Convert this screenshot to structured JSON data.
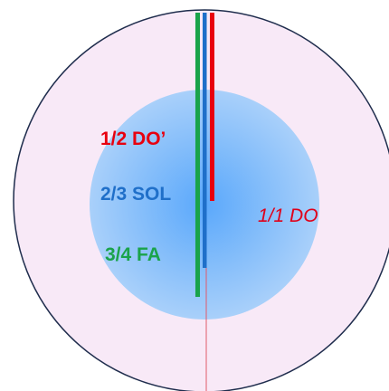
{
  "labels": {
    "octave": "1/2 DO’",
    "fifth": "2/3 SOL",
    "fourth": "3/4 FA",
    "fundamental": "1/1 DO"
  },
  "colors": {
    "octave": "#e8000f",
    "fifth": "#1f6fc9",
    "fourth": "#1aa34a",
    "fundamental": "#e0001a",
    "outer_fill": "#f8e9f7",
    "outer_stroke": "#1f2d4d",
    "inner_center": "#5aa8fb",
    "inner_edge": "#a9d0fa",
    "string": "#e05a6a"
  },
  "string_fractions": {
    "octave": 0.5,
    "fifth": 0.6667,
    "fourth": 0.75,
    "fundamental": 1.0
  }
}
